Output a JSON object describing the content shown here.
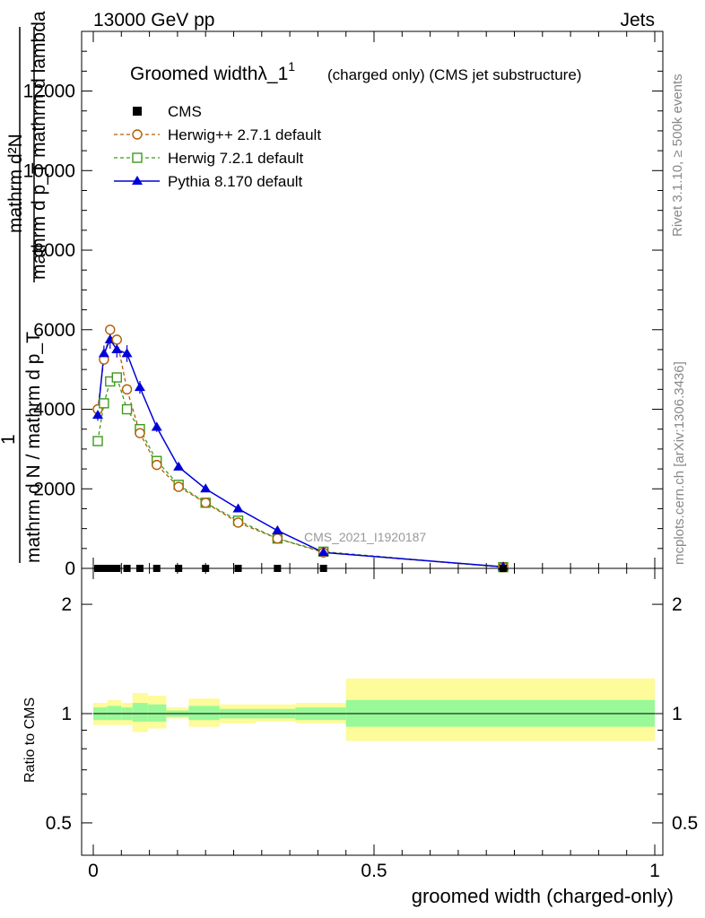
{
  "header": {
    "left": "13000 GeV pp",
    "right": "Jets"
  },
  "side": {
    "rivet": "Rivet 3.1.10, ≥ 500k events",
    "mcplots": "mcplots.cern.ch [arXiv:1306.3436]"
  },
  "title": {
    "main": "Groomed widthλ_1",
    "sup": "1",
    "rest": "(charged only) (CMS jet substructure)"
  },
  "ylabel_main": {
    "numer": "mathrm d²N",
    "denom": "mathrm d p_T mathrm d lambda",
    "factor": "1",
    "factor_denom": "mathrm d N / mathrm d p_T"
  },
  "ylabel_ratio": "Ratio to CMS",
  "xlabel": "groomed width (charged-only)",
  "watermark": "CMS_2021_I1920187",
  "legend": [
    "CMS",
    "Herwig++ 2.7.1 default",
    "Herwig 7.2.1 default",
    "Pythia 8.170 default"
  ],
  "colors": {
    "cms": "#000000",
    "herwigpp": "#b35c00",
    "herwig7": "#3d9b1a",
    "pythia": "#0000d8",
    "band_inner": "#99f999",
    "band_outer": "#fdfb9a"
  },
  "chart_data": [
    {
      "type": "line",
      "title": "Groomed widthλ_1¹ (charged only) (CMS jet substructure)",
      "xlabel": "groomed width (charged-only)",
      "xlim": [
        -0.02,
        1.02
      ],
      "ylim": [
        0,
        13500
      ],
      "yticks": [
        0,
        2000,
        4000,
        6000,
        8000,
        10000,
        12000
      ],
      "xticks": [
        0,
        0.5,
        1
      ],
      "x": [
        0.008,
        0.019,
        0.03,
        0.042,
        0.06,
        0.083,
        0.113,
        0.152,
        0.2,
        0.258,
        0.328,
        0.41,
        0.73
      ],
      "series": [
        {
          "name": "CMS",
          "values": [
            0,
            0,
            0,
            0,
            0,
            0,
            0,
            0,
            0,
            0,
            0,
            0,
            0
          ]
        },
        {
          "name": "Herwig++ 2.7.1 default",
          "values": [
            4000,
            5250,
            6000,
            5750,
            4500,
            3400,
            2600,
            2050,
            1650,
            1150,
            750,
            400,
            30
          ]
        },
        {
          "name": "Herwig 7.2.1 default",
          "values": [
            3200,
            4150,
            4700,
            4800,
            4000,
            3500,
            2700,
            2100,
            1650,
            1200,
            750,
            420,
            30
          ]
        },
        {
          "name": "Pythia 8.170 default",
          "values": [
            3850,
            5400,
            5750,
            5500,
            5400,
            4550,
            3550,
            2550,
            2000,
            1500,
            950,
            400,
            40
          ]
        }
      ]
    },
    {
      "type": "area",
      "ylabel": "Ratio to CMS",
      "ylim": [
        0.4,
        2.4
      ],
      "ylog": true,
      "yticks": [
        0.5,
        1,
        2
      ],
      "reference": 1,
      "bins": [
        {
          "x0": 0.0,
          "x1": 0.025,
          "inner": [
            0.96,
            1.04
          ],
          "outer": [
            0.93,
            1.07
          ]
        },
        {
          "x0": 0.025,
          "x1": 0.05,
          "inner": [
            0.96,
            1.05
          ],
          "outer": [
            0.93,
            1.09
          ]
        },
        {
          "x0": 0.05,
          "x1": 0.07,
          "inner": [
            0.96,
            1.04
          ],
          "outer": [
            0.93,
            1.07
          ]
        },
        {
          "x0": 0.07,
          "x1": 0.097,
          "inner": [
            0.95,
            1.07
          ],
          "outer": [
            0.89,
            1.14
          ]
        },
        {
          "x0": 0.097,
          "x1": 0.13,
          "inner": [
            0.95,
            1.06
          ],
          "outer": [
            0.91,
            1.12
          ]
        },
        {
          "x0": 0.13,
          "x1": 0.17,
          "inner": [
            0.98,
            1.02
          ],
          "outer": [
            0.97,
            1.04
          ]
        },
        {
          "x0": 0.17,
          "x1": 0.225,
          "inner": [
            0.96,
            1.05
          ],
          "outer": [
            0.92,
            1.1
          ]
        },
        {
          "x0": 0.225,
          "x1": 0.29,
          "inner": [
            0.97,
            1.03
          ],
          "outer": [
            0.94,
            1.06
          ]
        },
        {
          "x0": 0.29,
          "x1": 0.36,
          "inner": [
            0.97,
            1.03
          ],
          "outer": [
            0.95,
            1.06
          ]
        },
        {
          "x0": 0.36,
          "x1": 0.45,
          "inner": [
            0.96,
            1.04
          ],
          "outer": [
            0.94,
            1.07
          ]
        },
        {
          "x0": 0.45,
          "x1": 1.0,
          "inner": [
            0.92,
            1.09
          ],
          "outer": [
            0.84,
            1.25
          ]
        }
      ]
    }
  ]
}
